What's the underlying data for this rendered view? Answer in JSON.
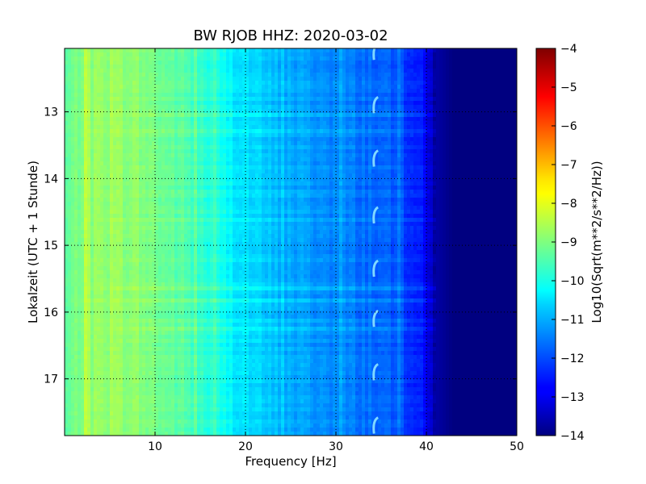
{
  "chart_data": {
    "type": "heatmap",
    "title": "BW RJOB HHZ: 2020-03-02",
    "xlabel": "Frequency [Hz]",
    "ylabel": "Lokalzeit (UTC + 1 Stunde)",
    "xlim": [
      0,
      50
    ],
    "ylim": [
      17.85,
      12.05
    ],
    "x_ticks": [
      10,
      20,
      30,
      40,
      50
    ],
    "y_ticks": [
      13,
      14,
      15,
      16,
      17
    ],
    "grid": true,
    "colormap": "jet",
    "colorbar": {
      "label": "Log10(Sqrt(m**2/s**2/Hz))",
      "range": [
        -14,
        -4
      ],
      "ticks": [
        -4,
        -5,
        -6,
        -7,
        -8,
        -9,
        -10,
        -11,
        -12,
        -13,
        -14
      ]
    },
    "spectrum_profile": {
      "frequency_hz": [
        0,
        2,
        4,
        6,
        8,
        10,
        13,
        16,
        19,
        22,
        25,
        28,
        31,
        34,
        37,
        39,
        40,
        41,
        43,
        50
      ],
      "log10_amplitude": [
        -9.4,
        -8.9,
        -8.8,
        -8.8,
        -8.9,
        -9.1,
        -9.4,
        -9.9,
        -10.4,
        -10.8,
        -11.1,
        -11.3,
        -11.5,
        -11.7,
        -12.0,
        -12.4,
        -12.9,
        -13.6,
        -14,
        -14
      ]
    },
    "annotations": [
      {
        "feature": "intermittent line",
        "frequency_hz": 34.3,
        "times": [
          12.1,
          12.9,
          13.7,
          14.55,
          15.35,
          16.1,
          16.9,
          17.7
        ]
      }
    ]
  }
}
